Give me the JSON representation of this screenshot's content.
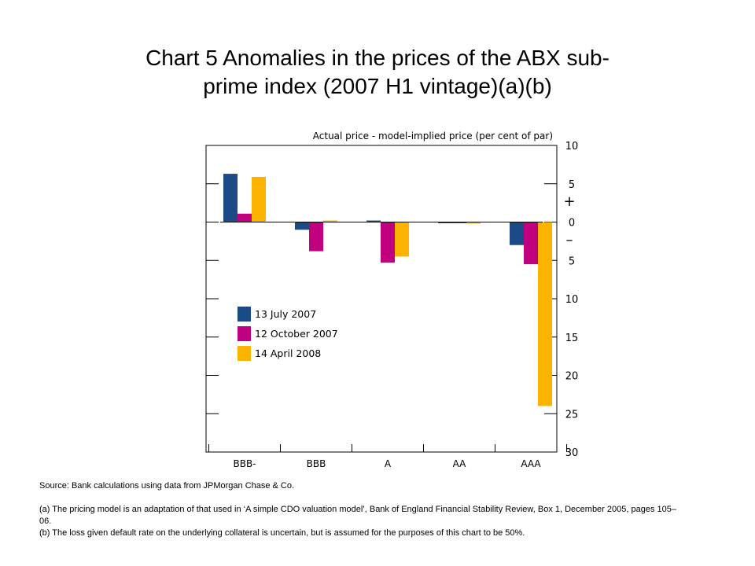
{
  "title_line1": "Chart 5  Anomalies in the prices of the ABX sub-",
  "title_line2": "prime index (2007 H1 vintage)(a)(b)",
  "chart_data": {
    "type": "bar",
    "title": "",
    "ylabel": "Actual price - model-implied price (per cent of par)",
    "xlabel": "",
    "categories": [
      "BBB-",
      "BBB",
      "A",
      "AA",
      "AAA"
    ],
    "ylim": [
      -30,
      10
    ],
    "y_ticks": [
      10,
      5,
      0,
      -5,
      -10,
      -15,
      -20,
      -25,
      -30
    ],
    "y_tick_labels": [
      "10",
      "5",
      "0",
      "5",
      "10",
      "15",
      "20",
      "25",
      "30"
    ],
    "plus_sign": "+",
    "minus_sign": "–",
    "legend_position": "left-middle",
    "series": [
      {
        "name": "13 July 2007",
        "color": "#1b4a86",
        "values": [
          6.3,
          -1.0,
          0.2,
          0.0,
          -3.0
        ]
      },
      {
        "name": "12 October 2007",
        "color": "#c0007f",
        "values": [
          1.1,
          -3.8,
          -5.3,
          0.0,
          -5.5
        ]
      },
      {
        "name": "14 April 2008",
        "color": "#fbb300",
        "values": [
          5.9,
          0.2,
          -4.5,
          -0.2,
          -24.0
        ]
      }
    ]
  },
  "notes": {
    "source": "Source:  Bank calculations using data from JPMorgan Chase & Co.",
    "note_a": "(a)  The pricing model is an adaptation of that used in ‘A simple CDO valuation model’, Bank of England Financial Stability Review, Box 1, December 2005, pages 105–06.",
    "note_b": "(b)  The loss given default rate on the underlying collateral is uncertain, but is assumed for the purposes of this chart to be 50%."
  }
}
